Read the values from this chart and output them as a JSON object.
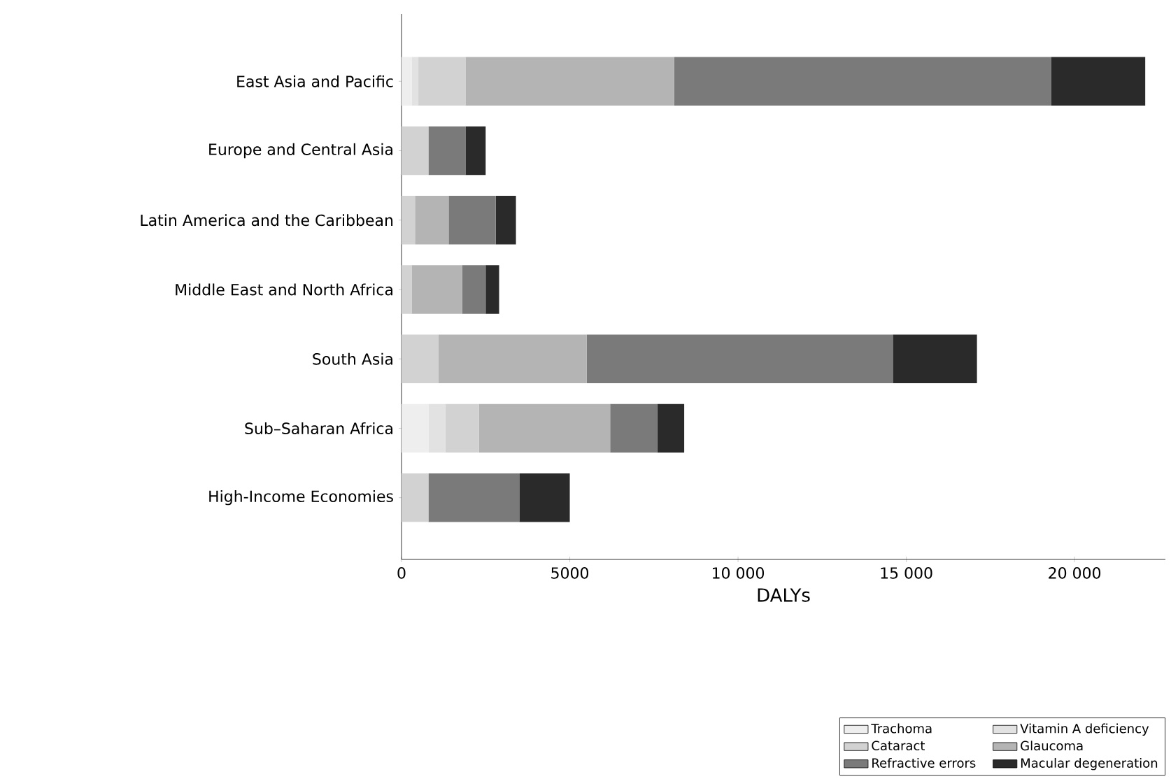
{
  "chart_data": {
    "type": "bar",
    "orientation": "horizontal",
    "stacked": true,
    "xlabel": "DALYs",
    "categories": [
      "East Asia and Pacific",
      "Europe and Central Asia",
      "Latin America and the Caribbean",
      "Middle East and North Africa",
      "South Asia",
      "Sub–Saharan Africa",
      "High-Income Economies"
    ],
    "series": [
      {
        "name": "Trachoma",
        "color": "#eeeeee",
        "values": [
          300,
          0,
          0,
          0,
          0,
          800,
          0
        ]
      },
      {
        "name": "Vitamin A deficiency",
        "color": "#e2e2e2",
        "values": [
          200,
          0,
          0,
          0,
          0,
          500,
          0
        ]
      },
      {
        "name": "Cataract",
        "color": "#d2d2d2",
        "values": [
          1400,
          800,
          400,
          300,
          1100,
          1000,
          800
        ]
      },
      {
        "name": "Glaucoma",
        "color": "#b4b4b4",
        "values": [
          6200,
          0,
          1000,
          1500,
          4400,
          3900,
          0
        ]
      },
      {
        "name": "Refractive errors",
        "color": "#7a7a7a",
        "values": [
          11200,
          1100,
          1400,
          700,
          9100,
          1400,
          2700
        ]
      },
      {
        "name": "Macular degeneration",
        "color": "#2a2a2a",
        "values": [
          2800,
          600,
          600,
          400,
          2500,
          800,
          1500
        ]
      }
    ],
    "xlim": [
      0,
      22700
    ],
    "xticks": [
      0,
      5000,
      {
        "value": 10000,
        "label": "10 000"
      },
      {
        "value": 15000,
        "label": "15 000"
      },
      {
        "value": 20000,
        "label": "20 000"
      }
    ],
    "legend": "bottom right"
  }
}
